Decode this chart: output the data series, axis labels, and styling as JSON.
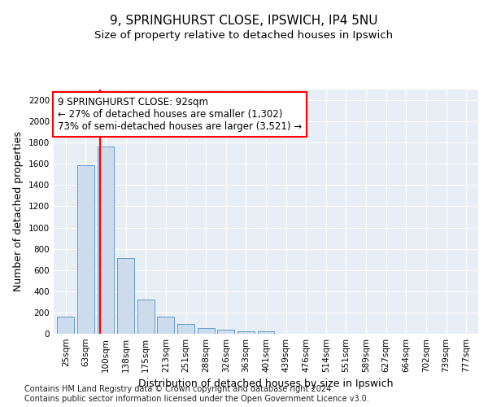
{
  "title1": "9, SPRINGHURST CLOSE, IPSWICH, IP4 5NU",
  "title2": "Size of property relative to detached houses in Ipswich",
  "xlabel": "Distribution of detached houses by size in Ipswich",
  "ylabel": "Number of detached properties",
  "bar_labels": [
    "25sqm",
    "63sqm",
    "100sqm",
    "138sqm",
    "175sqm",
    "213sqm",
    "251sqm",
    "288sqm",
    "326sqm",
    "363sqm",
    "401sqm",
    "439sqm",
    "476sqm",
    "514sqm",
    "551sqm",
    "589sqm",
    "627sqm",
    "664sqm",
    "702sqm",
    "739sqm",
    "777sqm"
  ],
  "bar_values": [
    160,
    1590,
    1760,
    710,
    320,
    160,
    90,
    55,
    35,
    25,
    20,
    0,
    0,
    0,
    0,
    0,
    0,
    0,
    0,
    0,
    0
  ],
  "bar_color": "#ccdcec",
  "bar_edge_color": "#6699cc",
  "vline_x": 1.72,
  "vline_color": "red",
  "annotation_text": "9 SPRINGHURST CLOSE: 92sqm\n← 27% of detached houses are smaller (1,302)\n73% of semi-detached houses are larger (3,521) →",
  "ylim": [
    0,
    2300
  ],
  "yticks": [
    0,
    200,
    400,
    600,
    800,
    1000,
    1200,
    1400,
    1600,
    1800,
    2000,
    2200
  ],
  "plot_bg_color": "#e8eef5",
  "grid_color": "#ffffff",
  "footer_line1": "Contains HM Land Registry data © Crown copyright and database right 2024.",
  "footer_line2": "Contains public sector information licensed under the Open Government Licence v3.0.",
  "title1_fontsize": 11,
  "title2_fontsize": 9.5,
  "xlabel_fontsize": 9,
  "ylabel_fontsize": 9,
  "annotation_fontsize": 8.5,
  "tick_fontsize": 7.5,
  "footer_fontsize": 7
}
